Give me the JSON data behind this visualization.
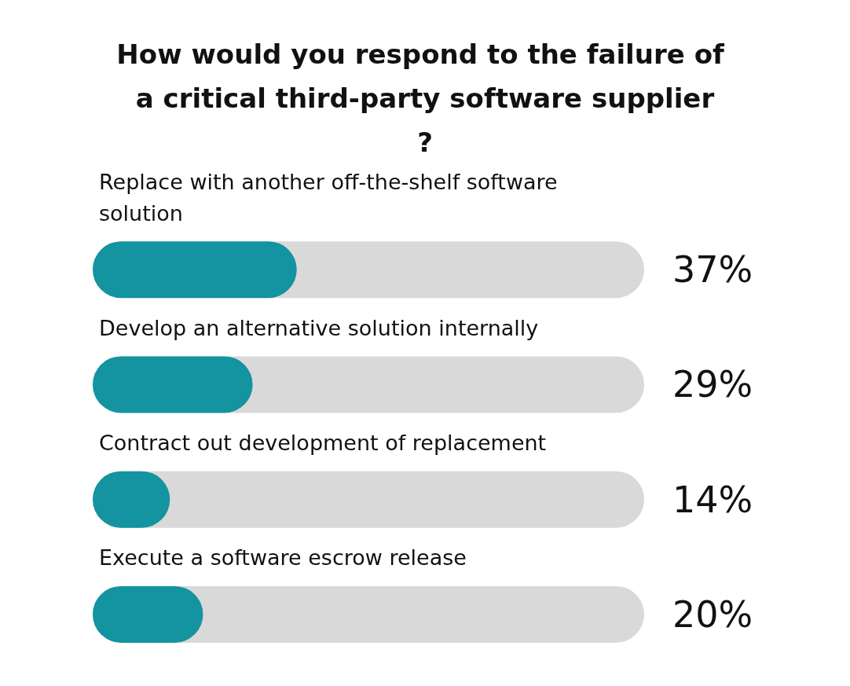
{
  "chart_data": {
    "type": "bar",
    "orientation": "horizontal",
    "title": "How would you respond to the failure of a critical third-party software supplier?",
    "categories": [
      "Replace with another off-the-shelf software solution",
      "Develop an alternative solution internally",
      "Contract out development of replacement",
      "Execute a software escrow release"
    ],
    "values": [
      37,
      29,
      14,
      20
    ],
    "value_labels": [
      "37%",
      "29%",
      "14%",
      "20%"
    ],
    "color": "#1493a0",
    "xlim": [
      0,
      100
    ]
  }
}
